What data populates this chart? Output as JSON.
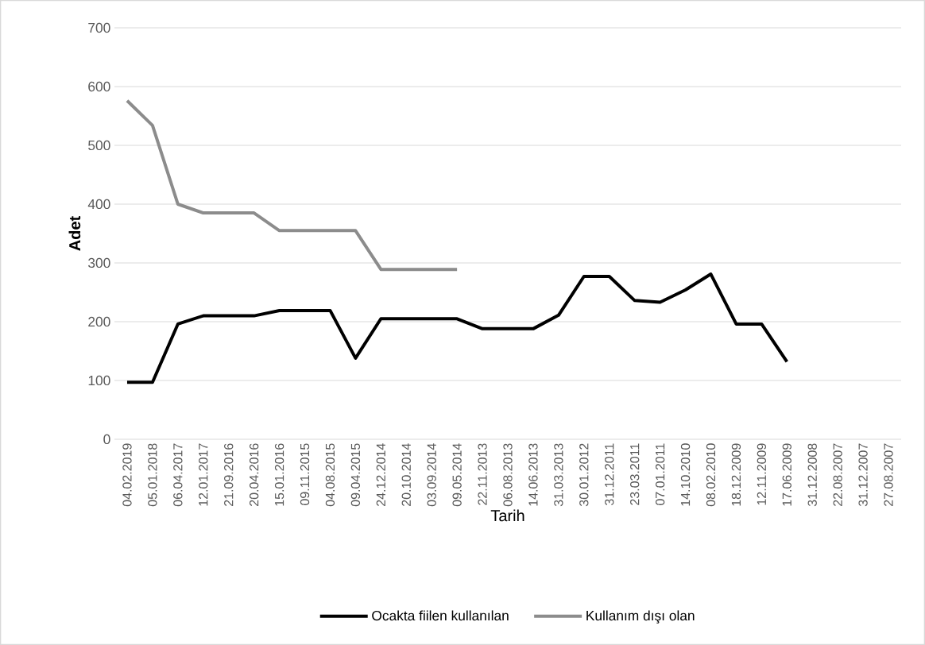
{
  "chart_data": {
    "type": "line",
    "xlabel": "Tarih",
    "ylabel": "Adet",
    "categories": [
      "04.02.2019",
      "05.01.2018",
      "06.04.2017",
      "12.01.2017",
      "21.09.2016",
      "20.04.2016",
      "15.01.2016",
      "09.11.2015",
      "04.08.2015",
      "09.04.2015",
      "24.12.2014",
      "20.10.2014",
      "03.09.2014",
      "09.05.2014",
      "22.11.2013",
      "06.08.2013",
      "14.06.2013",
      "31.03.2013",
      "30.01.2012",
      "31.12.2011",
      "23.03.2011",
      "07.01.2011",
      "14.10.2010",
      "08.02.2010",
      "18.12.2009",
      "12.11.2009",
      "17.06.2009",
      "31.12.2008",
      "22.08.2007",
      "31.12.2007",
      "27.08.2007"
    ],
    "series": [
      {
        "name": "Ocakta fiilen kullanılan",
        "color": "#000000",
        "values": [
          97,
          97,
          196,
          210,
          210,
          210,
          219,
          219,
          219,
          138,
          205,
          205,
          205,
          205,
          188,
          188,
          188,
          211,
          277,
          277,
          236,
          233,
          254,
          281,
          196,
          196,
          132,
          null,
          null,
          null,
          null
        ]
      },
      {
        "name": "Kullanım dışı olan",
        "color": "#8c8c8c",
        "values": [
          576,
          534,
          400,
          385,
          385,
          385,
          355,
          355,
          355,
          355,
          289,
          289,
          289,
          289,
          null,
          null,
          null,
          null,
          null,
          null,
          null,
          null,
          null,
          null,
          null,
          null,
          null,
          null,
          null,
          null,
          null
        ]
      }
    ],
    "ylim": [
      0,
      700
    ],
    "yticks": [
      0,
      100,
      200,
      300,
      400,
      500,
      600,
      700
    ],
    "grid": "y",
    "legend": "bottom"
  }
}
